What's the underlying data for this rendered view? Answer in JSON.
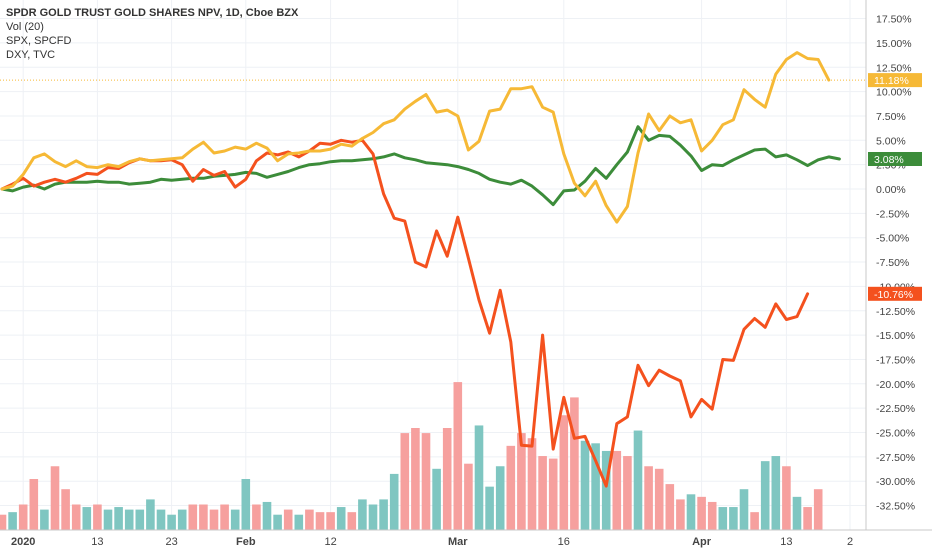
{
  "legend": {
    "main": "SPDR GOLD TRUST GOLD SHARES NPV, 1D, Cboe BZX",
    "vol": "Vol (20)",
    "spx": "SPX, SPCFD",
    "dxy": "DXY, TVC"
  },
  "chart_data": {
    "type": "line",
    "y_unit": "%",
    "ylim": [
      -34,
      19
    ],
    "yticks": [
      "17.50%",
      "15.00%",
      "12.50%",
      "10.00%",
      "7.50%",
      "5.00%",
      "2.50%",
      "0.00%",
      "-2.50%",
      "-5.00%",
      "-7.50%",
      "-10.00%",
      "-12.50%",
      "-15.00%",
      "-17.50%",
      "-20.00%",
      "-22.50%",
      "-25.00%",
      "-27.50%",
      "-30.00%",
      "-32.50%"
    ],
    "ytick_values": [
      17.5,
      15,
      12.5,
      10,
      7.5,
      5,
      2.5,
      0,
      -2.5,
      -5,
      -7.5,
      -10,
      -12.5,
      -15,
      -17.5,
      -20,
      -22.5,
      -25,
      -27.5,
      -30,
      -32.5
    ],
    "xticks": [
      {
        "label": "2020",
        "index": 2,
        "bold": true
      },
      {
        "label": "13",
        "index": 9
      },
      {
        "label": "23",
        "index": 16
      },
      {
        "label": "Feb",
        "index": 23,
        "bold": true
      },
      {
        "label": "12",
        "index": 31
      },
      {
        "label": "Mar",
        "index": 43,
        "bold": true
      },
      {
        "label": "16",
        "index": 53
      },
      {
        "label": "Apr",
        "index": 66,
        "bold": true
      },
      {
        "label": "13",
        "index": 74
      },
      {
        "label": "2",
        "index": 80
      }
    ],
    "x_count": 80,
    "series": [
      {
        "color": "#f6b936",
        "last_label": "11.18%",
        "last_value": 11.18,
        "values": [
          0.0,
          0.3,
          1.5,
          3.2,
          3.6,
          2.8,
          2.3,
          2.9,
          2.3,
          2.2,
          2.5,
          2.3,
          2.8,
          3.1,
          2.9,
          3.0,
          3.1,
          3.2,
          4.1,
          4.8,
          3.7,
          3.9,
          4.3,
          4.1,
          4.7,
          4.2,
          2.9,
          3.6,
          3.7,
          3.9,
          3.9,
          4.1,
          4.6,
          4.4,
          5.2,
          5.8,
          6.7,
          7.1,
          8.2,
          9.0,
          9.7,
          7.9,
          8.1,
          7.5,
          4.0,
          4.9,
          8.0,
          8.2,
          10.3,
          10.3,
          10.5,
          8.4,
          7.9,
          3.6,
          0.6,
          -0.7,
          0.8,
          -1.7,
          -3.4,
          -1.8,
          3.7,
          7.7,
          6.0,
          7.5,
          6.8,
          7.1,
          3.9,
          5.0,
          6.6,
          7.1,
          10.2,
          9.2,
          8.4,
          11.8,
          13.3,
          14.0,
          13.4,
          13.3,
          11.18
        ]
      },
      {
        "color": "#3c8c3a",
        "last_label": "3.08%",
        "last_value": 3.08,
        "values": [
          0.0,
          -0.2,
          0.2,
          0.4,
          0.0,
          0.5,
          0.7,
          0.7,
          0.7,
          0.8,
          0.7,
          0.7,
          0.5,
          0.6,
          0.7,
          1.0,
          0.9,
          1.0,
          1.1,
          1.1,
          1.3,
          1.4,
          1.5,
          1.7,
          1.6,
          1.2,
          1.5,
          1.8,
          2.2,
          2.5,
          2.6,
          2.8,
          2.9,
          2.9,
          3.0,
          3.1,
          3.3,
          3.6,
          3.2,
          3.0,
          2.7,
          2.6,
          2.5,
          2.3,
          2.0,
          1.6,
          1.0,
          0.7,
          0.5,
          0.9,
          0.3,
          -0.6,
          -1.6,
          -0.2,
          -0.1,
          0.8,
          2.1,
          1.1,
          2.5,
          3.8,
          6.4,
          5.0,
          5.5,
          5.4,
          4.5,
          3.4,
          1.9,
          2.5,
          2.4,
          3.0,
          3.5,
          4.0,
          4.1,
          3.3,
          3.5,
          3.0,
          2.4,
          3.0,
          3.3,
          3.08
        ]
      },
      {
        "color": "#f4511e",
        "last_label": "-10.76%",
        "last_value": -10.76,
        "values": [
          0.0,
          0.5,
          1.1,
          0.3,
          0.7,
          1.0,
          0.7,
          1.1,
          1.6,
          1.5,
          2.2,
          2.1,
          2.7,
          3.1,
          2.9,
          2.9,
          3.0,
          2.5,
          0.8,
          2.0,
          1.4,
          1.8,
          0.2,
          1.0,
          2.9,
          3.7,
          3.5,
          3.8,
          3.3,
          3.9,
          4.7,
          4.6,
          5.0,
          4.8,
          5.0,
          3.6,
          -0.5,
          -3.0,
          -3.3,
          -7.5,
          -8.0,
          -4.3,
          -6.9,
          -2.9,
          -7.1,
          -11.4,
          -14.8,
          -10.4,
          -15.7,
          -26.3,
          -26.4,
          -15.0,
          -26.7,
          -21.4,
          -25.6,
          -25.4,
          -27.9,
          -30.5,
          -24.1,
          -23.4,
          -18.1,
          -20.2,
          -18.6,
          -19.2,
          -19.7,
          -23.4,
          -21.6,
          -22.6,
          -17.5,
          -17.6,
          -14.4,
          -13.3,
          -14.2,
          -11.8,
          -13.4,
          -13.1,
          -10.76
        ]
      }
    ],
    "volume": {
      "up_color": "#7fc6c1",
      "down_color": "#f6a09e",
      "bars": [
        {
          "v": 0.06,
          "up": false
        },
        {
          "v": 0.07,
          "up": true
        },
        {
          "v": 0.1,
          "up": false
        },
        {
          "v": 0.2,
          "up": false
        },
        {
          "v": 0.08,
          "up": true
        },
        {
          "v": 0.25,
          "up": false
        },
        {
          "v": 0.16,
          "up": false
        },
        {
          "v": 0.1,
          "up": false
        },
        {
          "v": 0.09,
          "up": true
        },
        {
          "v": 0.1,
          "up": false
        },
        {
          "v": 0.08,
          "up": true
        },
        {
          "v": 0.09,
          "up": true
        },
        {
          "v": 0.08,
          "up": true
        },
        {
          "v": 0.08,
          "up": true
        },
        {
          "v": 0.12,
          "up": true
        },
        {
          "v": 0.08,
          "up": true
        },
        {
          "v": 0.06,
          "up": true
        },
        {
          "v": 0.08,
          "up": true
        },
        {
          "v": 0.1,
          "up": false
        },
        {
          "v": 0.1,
          "up": false
        },
        {
          "v": 0.08,
          "up": false
        },
        {
          "v": 0.1,
          "up": false
        },
        {
          "v": 0.08,
          "up": true
        },
        {
          "v": 0.2,
          "up": true
        },
        {
          "v": 0.1,
          "up": false
        },
        {
          "v": 0.11,
          "up": true
        },
        {
          "v": 0.06,
          "up": true
        },
        {
          "v": 0.08,
          "up": false
        },
        {
          "v": 0.06,
          "up": true
        },
        {
          "v": 0.08,
          "up": false
        },
        {
          "v": 0.07,
          "up": false
        },
        {
          "v": 0.07,
          "up": false
        },
        {
          "v": 0.09,
          "up": true
        },
        {
          "v": 0.07,
          "up": false
        },
        {
          "v": 0.12,
          "up": true
        },
        {
          "v": 0.1,
          "up": true
        },
        {
          "v": 0.12,
          "up": true
        },
        {
          "v": 0.22,
          "up": true
        },
        {
          "v": 0.38,
          "up": false
        },
        {
          "v": 0.4,
          "up": false
        },
        {
          "v": 0.38,
          "up": false
        },
        {
          "v": 0.24,
          "up": true
        },
        {
          "v": 0.4,
          "up": false
        },
        {
          "v": 0.58,
          "up": false
        },
        {
          "v": 0.26,
          "up": false
        },
        {
          "v": 0.41,
          "up": true
        },
        {
          "v": 0.17,
          "up": true
        },
        {
          "v": 0.25,
          "up": true
        },
        {
          "v": 0.33,
          "up": false
        },
        {
          "v": 0.38,
          "up": false
        },
        {
          "v": 0.36,
          "up": false
        },
        {
          "v": 0.29,
          "up": false
        },
        {
          "v": 0.28,
          "up": false
        },
        {
          "v": 0.45,
          "up": false
        },
        {
          "v": 0.52,
          "up": false
        },
        {
          "v": 0.35,
          "up": true
        },
        {
          "v": 0.34,
          "up": true
        },
        {
          "v": 0.31,
          "up": true
        },
        {
          "v": 0.31,
          "up": false
        },
        {
          "v": 0.29,
          "up": false
        },
        {
          "v": 0.39,
          "up": true
        },
        {
          "v": 0.25,
          "up": false
        },
        {
          "v": 0.24,
          "up": false
        },
        {
          "v": 0.18,
          "up": false
        },
        {
          "v": 0.12,
          "up": false
        },
        {
          "v": 0.14,
          "up": true
        },
        {
          "v": 0.13,
          "up": false
        },
        {
          "v": 0.11,
          "up": false
        },
        {
          "v": 0.09,
          "up": true
        },
        {
          "v": 0.09,
          "up": true
        },
        {
          "v": 0.16,
          "up": true
        },
        {
          "v": 0.07,
          "up": false
        },
        {
          "v": 0.27,
          "up": true
        },
        {
          "v": 0.29,
          "up": true
        },
        {
          "v": 0.25,
          "up": false
        },
        {
          "v": 0.13,
          "up": true
        },
        {
          "v": 0.09,
          "up": false
        },
        {
          "v": 0.16,
          "up": false
        }
      ]
    }
  }
}
